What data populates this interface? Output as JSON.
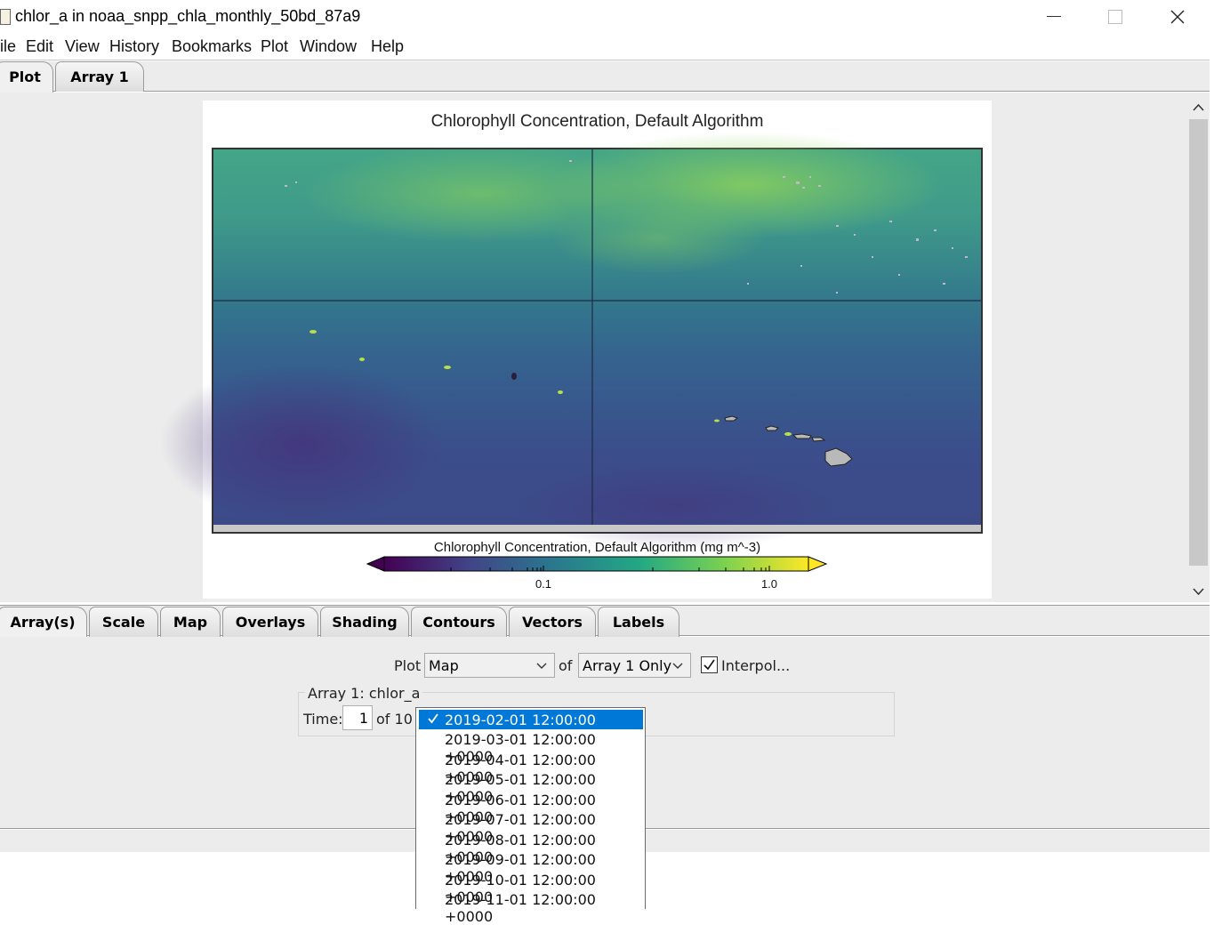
{
  "window": {
    "title": "chlor_a in noaa_snpp_chla_monthly_50bd_87a9"
  },
  "menu": [
    "ile",
    "Edit",
    "View",
    "History",
    "Bookmarks",
    "Plot",
    "Window",
    "Help"
  ],
  "upper_tabs": [
    {
      "label": "Plot",
      "active": true
    },
    {
      "label": "Array 1",
      "active": false
    }
  ],
  "plot": {
    "title": "Chlorophyll Concentration, Default Algorithm",
    "colorbar": {
      "label": "Chlorophyll Concentration, Default Algorithm (mg m^-3)",
      "tick_labels": [
        "0.1",
        "1.0"
      ],
      "colormap": [
        "#440154",
        "#414487",
        "#2a788e",
        "#22a884",
        "#7ad151",
        "#fde725"
      ],
      "scale": "log"
    },
    "map_colors": {
      "ocean_low": "#3b4f8c",
      "ocean_high": "#5cc06b",
      "land": "#b8b8b8"
    }
  },
  "lower_tabs": [
    {
      "label": "Array(s)",
      "active": true
    },
    {
      "label": "Scale",
      "active": false
    },
    {
      "label": "Map",
      "active": false
    },
    {
      "label": "Overlays",
      "active": false
    },
    {
      "label": "Shading",
      "active": false
    },
    {
      "label": "Contours",
      "active": false
    },
    {
      "label": "Vectors",
      "active": false
    },
    {
      "label": "Labels",
      "active": false
    }
  ],
  "controls": {
    "plot_label": "Plot",
    "plot_type": "Map",
    "of_label": "of",
    "array_select": "Array 1 Only",
    "interpolate_label": "Interpol...",
    "interpolate_checked": true,
    "array_group_title": "Array 1: chlor_a",
    "time_label": "Time:",
    "time_value": "1",
    "time_total": "of 10"
  },
  "time_dropdown": {
    "selected_index": 0,
    "options": [
      "2019-02-01 12:00:00 +0000",
      "2019-03-01 12:00:00 +0000",
      "2019-04-01 12:00:00 +0000",
      "2019-05-01 12:00:00 +0000",
      "2019-06-01 12:00:00 +0000",
      "2019-07-01 12:00:00 +0000",
      "2019-08-01 12:00:00 +0000",
      "2019-09-01 12:00:00 +0000",
      "2019-10-01 12:00:00 +0000",
      "2019-11-01 12:00:00 +0000"
    ]
  }
}
